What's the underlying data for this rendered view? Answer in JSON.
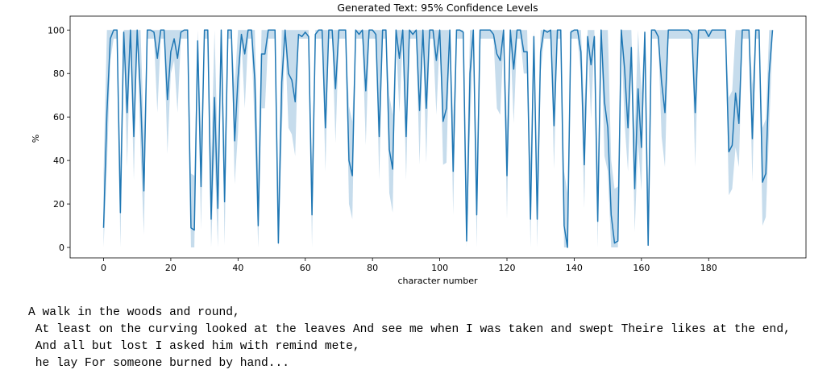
{
  "chart_data": {
    "type": "line",
    "title": "Generated Text: 95% Confidence Levels",
    "xlabel": "character number",
    "ylabel": "%",
    "x": [
      0,
      1,
      2,
      3,
      4,
      5,
      6,
      7,
      8,
      9,
      10,
      11,
      12,
      13,
      14,
      15,
      16,
      17,
      18,
      19,
      20,
      21,
      22,
      23,
      24,
      25,
      26,
      27,
      28,
      29,
      30,
      31,
      32,
      33,
      34,
      35,
      36,
      37,
      38,
      39,
      40,
      41,
      42,
      43,
      44,
      45,
      46,
      47,
      48,
      49,
      50,
      51,
      52,
      53,
      54,
      55,
      56,
      57,
      58,
      59,
      60,
      61,
      62,
      63,
      64,
      65,
      66,
      67,
      68,
      69,
      70,
      71,
      72,
      73,
      74,
      75,
      76,
      77,
      78,
      79,
      80,
      81,
      82,
      83,
      84,
      85,
      86,
      87,
      88,
      89,
      90,
      91,
      92,
      93,
      94,
      95,
      96,
      97,
      98,
      99,
      100,
      101,
      102,
      103,
      104,
      105,
      106,
      107,
      108,
      109,
      110,
      111,
      112,
      113,
      114,
      115,
      116,
      117,
      118,
      119,
      120,
      121,
      122,
      123,
      124,
      125,
      126,
      127,
      128,
      129,
      130,
      131,
      132,
      133,
      134,
      135,
      136,
      137,
      138,
      139,
      140,
      141,
      142,
      143,
      144,
      145,
      146,
      147,
      148,
      149,
      150,
      151,
      152,
      153,
      154,
      155,
      156,
      157,
      158,
      159,
      160,
      161,
      162,
      163,
      164,
      165,
      166,
      167,
      168,
      169,
      170,
      171,
      172,
      173,
      174,
      175,
      176,
      177,
      178,
      179,
      180,
      181,
      182,
      183,
      184,
      185,
      186,
      187,
      188,
      189,
      190,
      191,
      192,
      193,
      194,
      195,
      196,
      197,
      198,
      199
    ],
    "series": [
      {
        "color": "#1f77b4",
        "band_color": "#c6dcec",
        "values": [
          9,
          62,
          96,
          100,
          100,
          16,
          99,
          62,
          100,
          51,
          100,
          70,
          26,
          100,
          100,
          99,
          87,
          100,
          100,
          68,
          90,
          96,
          87,
          99,
          100,
          100,
          9,
          8,
          95,
          28,
          100,
          100,
          13,
          69,
          18,
          100,
          21,
          100,
          100,
          49,
          78,
          98,
          89,
          100,
          100,
          77,
          10,
          89,
          89,
          100,
          100,
          100,
          2,
          76,
          100,
          80,
          77,
          67,
          98,
          97,
          99,
          97,
          15,
          98,
          100,
          100,
          55,
          100,
          100,
          73,
          100,
          100,
          100,
          40,
          33,
          100,
          98,
          100,
          72,
          100,
          100,
          98,
          51,
          100,
          100,
          45,
          36,
          100,
          87,
          100,
          51,
          100,
          98,
          100,
          63,
          100,
          64,
          100,
          100,
          86,
          100,
          58,
          64,
          100,
          35,
          100,
          100,
          99,
          3,
          80,
          100,
          15,
          100,
          100,
          100,
          100,
          98,
          89,
          86,
          100,
          33,
          100,
          82,
          100,
          100,
          90,
          90,
          13,
          97,
          13,
          90,
          100,
          99,
          100,
          56,
          100,
          100,
          10,
          0,
          99,
          100,
          100,
          90,
          38,
          97,
          84,
          97,
          12,
          100,
          67,
          55,
          15,
          2,
          3,
          100,
          82,
          55,
          92,
          27,
          73,
          46,
          99,
          1,
          100,
          100,
          97,
          76,
          62,
          100,
          100,
          100,
          100,
          100,
          100,
          100,
          98,
          62,
          100,
          100,
          100,
          97,
          100,
          100,
          100,
          100,
          100,
          44,
          47,
          71,
          57,
          100,
          100,
          100,
          50,
          100,
          100,
          30,
          34,
          80,
          100
        ],
        "ci_lower": [
          0,
          37,
          86,
          96,
          96,
          0,
          96,
          37,
          96,
          31,
          96,
          45,
          6,
          96,
          96,
          96,
          62,
          96,
          96,
          43,
          80,
          86,
          62,
          96,
          96,
          96,
          0,
          0,
          85,
          8,
          96,
          96,
          0,
          44,
          0,
          96,
          1,
          96,
          96,
          29,
          53,
          96,
          64,
          96,
          96,
          52,
          0,
          64,
          64,
          96,
          96,
          96,
          0,
          51,
          96,
          55,
          52,
          42,
          96,
          96,
          96,
          96,
          0,
          96,
          96,
          96,
          35,
          96,
          96,
          48,
          96,
          96,
          96,
          20,
          13,
          96,
          96,
          96,
          47,
          96,
          96,
          96,
          31,
          96,
          96,
          25,
          16,
          96,
          62,
          96,
          31,
          96,
          96,
          96,
          38,
          96,
          39,
          96,
          96,
          61,
          96,
          38,
          39,
          96,
          15,
          96,
          96,
          96,
          0,
          55,
          96,
          0,
          96,
          96,
          96,
          96,
          96,
          64,
          61,
          96,
          13,
          96,
          57,
          96,
          96,
          80,
          80,
          0,
          96,
          0,
          80,
          96,
          96,
          96,
          36,
          96,
          96,
          0,
          0,
          96,
          96,
          96,
          80,
          18,
          96,
          59,
          96,
          0,
          96,
          42,
          35,
          0,
          0,
          0,
          96,
          57,
          35,
          82,
          7,
          48,
          26,
          96,
          0,
          96,
          96,
          96,
          51,
          37,
          96,
          96,
          96,
          96,
          96,
          96,
          96,
          96,
          37,
          96,
          96,
          96,
          96,
          96,
          96,
          96,
          96,
          96,
          24,
          27,
          46,
          37,
          96,
          96,
          96,
          30,
          96,
          96,
          10,
          14,
          55,
          96
        ],
        "ci_upper": [
          34,
          100,
          100,
          100,
          100,
          41,
          100,
          100,
          100,
          100,
          100,
          100,
          51,
          100,
          100,
          100,
          100,
          100,
          100,
          100,
          100,
          100,
          100,
          100,
          100,
          100,
          34,
          33,
          100,
          53,
          100,
          100,
          38,
          100,
          43,
          100,
          46,
          100,
          100,
          74,
          100,
          100,
          100,
          100,
          100,
          100,
          35,
          100,
          100,
          100,
          100,
          100,
          27,
          100,
          100,
          100,
          100,
          100,
          100,
          100,
          100,
          100,
          40,
          100,
          100,
          100,
          100,
          100,
          100,
          100,
          100,
          100,
          100,
          65,
          58,
          100,
          100,
          100,
          100,
          100,
          100,
          100,
          100,
          100,
          100,
          70,
          61,
          100,
          100,
          100,
          100,
          100,
          100,
          100,
          100,
          100,
          100,
          100,
          100,
          100,
          100,
          100,
          100,
          100,
          60,
          100,
          100,
          100,
          28,
          100,
          100,
          40,
          100,
          100,
          100,
          100,
          100,
          100,
          100,
          100,
          58,
          100,
          100,
          100,
          100,
          100,
          100,
          38,
          100,
          38,
          100,
          100,
          100,
          100,
          100,
          100,
          100,
          35,
          25,
          100,
          100,
          100,
          100,
          63,
          100,
          100,
          100,
          37,
          100,
          100,
          100,
          40,
          27,
          28,
          100,
          100,
          100,
          100,
          52,
          100,
          71,
          100,
          26,
          100,
          100,
          100,
          100,
          100,
          100,
          100,
          100,
          100,
          100,
          100,
          100,
          100,
          100,
          100,
          100,
          100,
          100,
          100,
          100,
          100,
          100,
          100,
          69,
          72,
          100,
          100,
          100,
          100,
          100,
          75,
          100,
          100,
          55,
          59,
          100,
          100
        ]
      }
    ],
    "xlim": [
      -9.95,
      208.95
    ],
    "xticks": [
      0,
      20,
      40,
      60,
      80,
      100,
      120,
      140,
      160,
      180
    ],
    "ylim": [
      -4.8,
      106.4
    ],
    "yticks": [
      0,
      20,
      40,
      60,
      80,
      100
    ]
  },
  "text": {
    "lines": [
      "A walk in the woods and round,",
      " At least on the curving looked at the leaves And see me when I was taken and swept Theire likes at the end,",
      " And all but lost I asked him with remind mete,",
      " he lay For someone burned by hand..."
    ]
  }
}
